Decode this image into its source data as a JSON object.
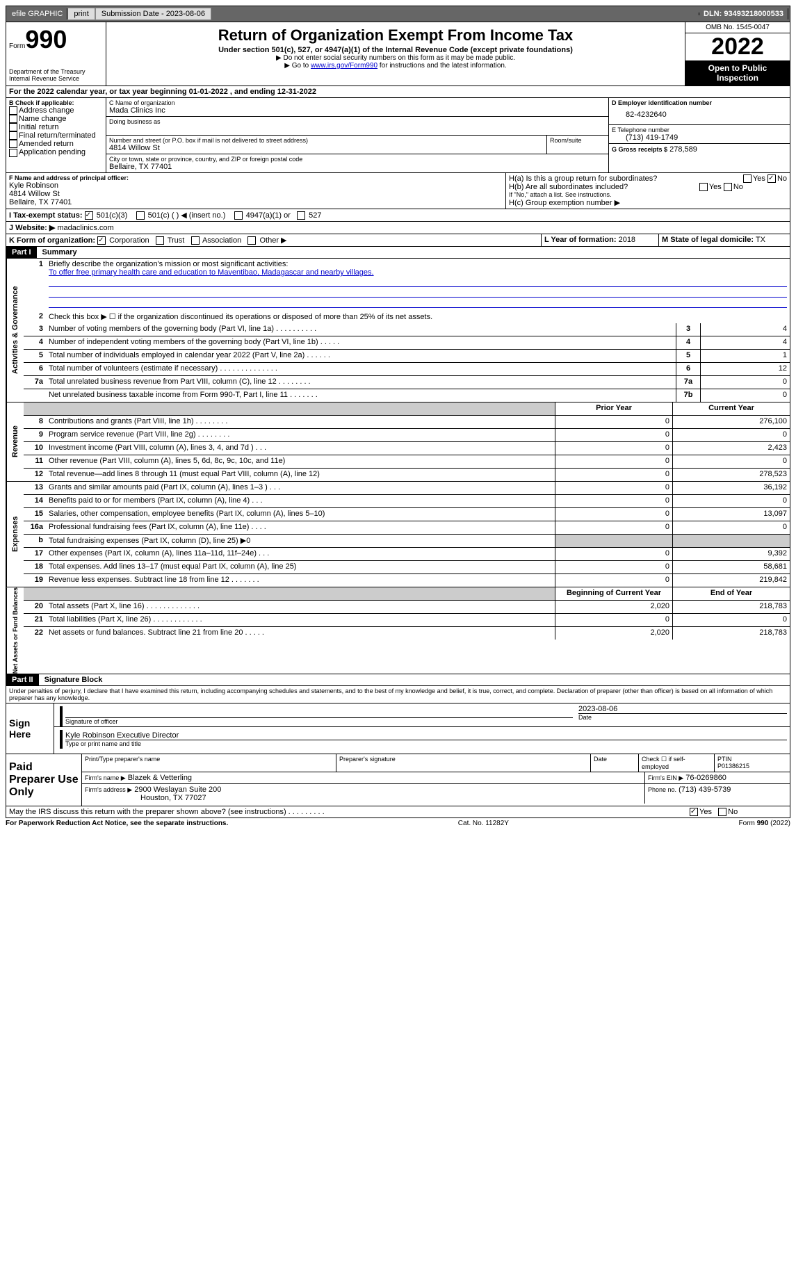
{
  "top_bar": {
    "efile": "efile GRAPHIC",
    "print": "print",
    "submission_label": "Submission Date - 2023-08-06",
    "dln": "DLN: 93493218000533"
  },
  "form_header": {
    "form_word": "Form",
    "form_num": "990",
    "dept": "Department of the Treasury Internal Revenue Service",
    "title": "Return of Organization Exempt From Income Tax",
    "subtitle": "Under section 501(c), 527, or 4947(a)(1) of the Internal Revenue Code (except private foundations)",
    "note1": "▶ Do not enter social security numbers on this form as it may be made public.",
    "note2_prefix": "▶ Go to ",
    "note2_link": "www.irs.gov/Form990",
    "note2_suffix": " for instructions and the latest information.",
    "omb": "OMB No. 1545-0047",
    "year": "2022",
    "inspection": "Open to Public Inspection"
  },
  "period": {
    "text": "For the 2022 calendar year, or tax year beginning 01-01-2022   , and ending 12-31-2022"
  },
  "section_b": {
    "label": "B Check if applicable:",
    "items": [
      "Address change",
      "Name change",
      "Initial return",
      "Final return/terminated",
      "Amended return",
      "Application pending"
    ]
  },
  "section_c": {
    "name_label": "C Name of organization",
    "name": "Mada Clinics Inc",
    "dba_label": "Doing business as",
    "street_label": "Number and street (or P.O. box if mail is not delivered to street address)",
    "room_label": "Room/suite",
    "street": "4814 Willow St",
    "city_label": "City or town, state or province, country, and ZIP or foreign postal code",
    "city": "Bellaire, TX  77401"
  },
  "section_d": {
    "label": "D Employer identification number",
    "ein": "82-4232640"
  },
  "section_e": {
    "label": "E Telephone number",
    "phone": "(713) 419-1749"
  },
  "section_g": {
    "label": "G Gross receipts $",
    "amount": "278,589"
  },
  "section_f": {
    "label": "F Name and address of principal officer:",
    "name": "Kyle Robinson",
    "street": "4814 Willow St",
    "city": "Bellaire, TX  77401"
  },
  "section_h": {
    "ha": "H(a)  Is this a group return for subordinates?",
    "hb": "H(b)  Are all subordinates included?",
    "hb_note": "If \"No,\" attach a list. See instructions.",
    "hc": "H(c)  Group exemption number ▶",
    "yes": "Yes",
    "no": "No"
  },
  "section_i": {
    "label": "I   Tax-exempt status:",
    "opt1": "501(c)(3)",
    "opt2": "501(c) (  ) ◀ (insert no.)",
    "opt3": "4947(a)(1) or",
    "opt4": "527"
  },
  "section_j": {
    "label": "J   Website: ▶",
    "site": "madaclinics.com"
  },
  "section_k": {
    "label": "K Form of organization:",
    "opts": [
      "Corporation",
      "Trust",
      "Association",
      "Other ▶"
    ]
  },
  "section_l": {
    "label": "L Year of formation:",
    "year": "2018"
  },
  "section_m": {
    "label": "M State of legal domicile:",
    "state": "TX"
  },
  "part1": {
    "header": "Part I",
    "title": "Summary",
    "line1_label": "Briefly describe the organization's mission or most significant activities:",
    "mission": "To offer free primary health care and education to Maventibao, Madagascar and nearby villages.",
    "line2": "Check this box ▶ ☐  if the organization discontinued its operations or disposed of more than 25% of its net assets."
  },
  "governance_label": "Activities & Governance",
  "revenue_label": "Revenue",
  "expenses_label": "Expenses",
  "netassets_label": "Net Assets or Fund Balances",
  "summary_rows_gov": [
    {
      "num": "3",
      "label": "Number of voting members of the governing body (Part VI, line 1a)  .  .  .  .  .  .  .  .  .  .",
      "box": "3",
      "val": "4"
    },
    {
      "num": "4",
      "label": "Number of independent voting members of the governing body (Part VI, line 1b)  .  .  .  .  .",
      "box": "4",
      "val": "4"
    },
    {
      "num": "5",
      "label": "Total number of individuals employed in calendar year 2022 (Part V, line 2a)  .  .  .  .  .  .",
      "box": "5",
      "val": "1"
    },
    {
      "num": "6",
      "label": "Total number of volunteers (estimate if necessary)  .  .  .  .  .  .  .  .  .  .  .  .  .  .",
      "box": "6",
      "val": "12"
    },
    {
      "num": "7a",
      "label": "Total unrelated business revenue from Part VIII, column (C), line 12  .  .  .  .  .  .  .  .",
      "box": "7a",
      "val": "0"
    },
    {
      "num": "",
      "label": "Net unrelated business taxable income from Form 990-T, Part I, line 11  .  .  .  .  .  .  .",
      "box": "7b",
      "val": "0"
    }
  ],
  "col_headers": {
    "prior": "Prior Year",
    "current": "Current Year",
    "begin": "Beginning of Current Year",
    "end": "End of Year"
  },
  "summary_rows_rev": [
    {
      "num": "8",
      "label": "Contributions and grants (Part VIII, line 1h)  .  .  .  .  .  .  .  .",
      "prior": "0",
      "current": "276,100"
    },
    {
      "num": "9",
      "label": "Program service revenue (Part VIII, line 2g)  .  .  .  .  .  .  .  .",
      "prior": "0",
      "current": "0"
    },
    {
      "num": "10",
      "label": "Investment income (Part VIII, column (A), lines 3, 4, and 7d )  .  .  .",
      "prior": "0",
      "current": "2,423"
    },
    {
      "num": "11",
      "label": "Other revenue (Part VIII, column (A), lines 5, 6d, 8c, 9c, 10c, and 11e)",
      "prior": "0",
      "current": "0"
    },
    {
      "num": "12",
      "label": "Total revenue—add lines 8 through 11 (must equal Part VIII, column (A), line 12)",
      "prior": "0",
      "current": "278,523"
    }
  ],
  "summary_rows_exp": [
    {
      "num": "13",
      "label": "Grants and similar amounts paid (Part IX, column (A), lines 1–3 )  .  .  .",
      "prior": "0",
      "current": "36,192"
    },
    {
      "num": "14",
      "label": "Benefits paid to or for members (Part IX, column (A), line 4)  .  .  .",
      "prior": "0",
      "current": "0"
    },
    {
      "num": "15",
      "label": "Salaries, other compensation, employee benefits (Part IX, column (A), lines 5–10)",
      "prior": "0",
      "current": "13,097"
    },
    {
      "num": "16a",
      "label": "Professional fundraising fees (Part IX, column (A), line 11e)  .  .  .  .",
      "prior": "0",
      "current": "0"
    },
    {
      "num": "b",
      "label": "Total fundraising expenses (Part IX, column (D), line 25) ▶0",
      "prior": "",
      "current": "",
      "shaded": true
    },
    {
      "num": "17",
      "label": "Other expenses (Part IX, column (A), lines 11a–11d, 11f–24e)  .  .  .",
      "prior": "0",
      "current": "9,392"
    },
    {
      "num": "18",
      "label": "Total expenses. Add lines 13–17 (must equal Part IX, column (A), line 25)",
      "prior": "0",
      "current": "58,681"
    },
    {
      "num": "19",
      "label": "Revenue less expenses. Subtract line 18 from line 12  .  .  .  .  .  .  .",
      "prior": "0",
      "current": "219,842"
    }
  ],
  "summary_rows_net": [
    {
      "num": "20",
      "label": "Total assets (Part X, line 16)  .  .  .  .  .  .  .  .  .  .  .  .  .",
      "prior": "2,020",
      "current": "218,783"
    },
    {
      "num": "21",
      "label": "Total liabilities (Part X, line 26)  .  .  .  .  .  .  .  .  .  .  .  .",
      "prior": "0",
      "current": "0"
    },
    {
      "num": "22",
      "label": "Net assets or fund balances. Subtract line 21 from line 20  .  .  .  .  .",
      "prior": "2,020",
      "current": "218,783"
    }
  ],
  "part2": {
    "header": "Part II",
    "title": "Signature Block",
    "declaration": "Under penalties of perjury, I declare that I have examined this return, including accompanying schedules and statements, and to the best of my knowledge and belief, it is true, correct, and complete. Declaration of preparer (other than officer) is based on all information of which preparer has any knowledge."
  },
  "sign_here": {
    "label": "Sign Here",
    "sig_label": "Signature of officer",
    "date_label": "Date",
    "date": "2023-08-06",
    "name": "Kyle Robinson  Executive Director",
    "name_label": "Type or print name and title"
  },
  "paid_preparer": {
    "label": "Paid Preparer Use Only",
    "name_label": "Print/Type preparer's name",
    "sig_label": "Preparer's signature",
    "date_label": "Date",
    "check_label": "Check ☐ if self-employed",
    "ptin_label": "PTIN",
    "ptin": "P01386215",
    "firm_name_label": "Firm's name   ▶",
    "firm_name": "Blazek & Vetterling",
    "firm_ein_label": "Firm's EIN ▶",
    "firm_ein": "76-0269860",
    "firm_addr_label": "Firm's address ▶",
    "firm_addr1": "2900 Weslayan Suite 200",
    "firm_addr2": "Houston, TX  77027",
    "phone_label": "Phone no.",
    "phone": "(713) 439-5739"
  },
  "discuss": {
    "text": "May the IRS discuss this return with the preparer shown above? (see instructions)  .  .  .  .  .  .  .  .  .",
    "yes": "Yes",
    "no": "No"
  },
  "footer": {
    "left": "For Paperwork Reduction Act Notice, see the separate instructions.",
    "mid": "Cat. No. 11282Y",
    "right": "Form 990 (2022)"
  }
}
